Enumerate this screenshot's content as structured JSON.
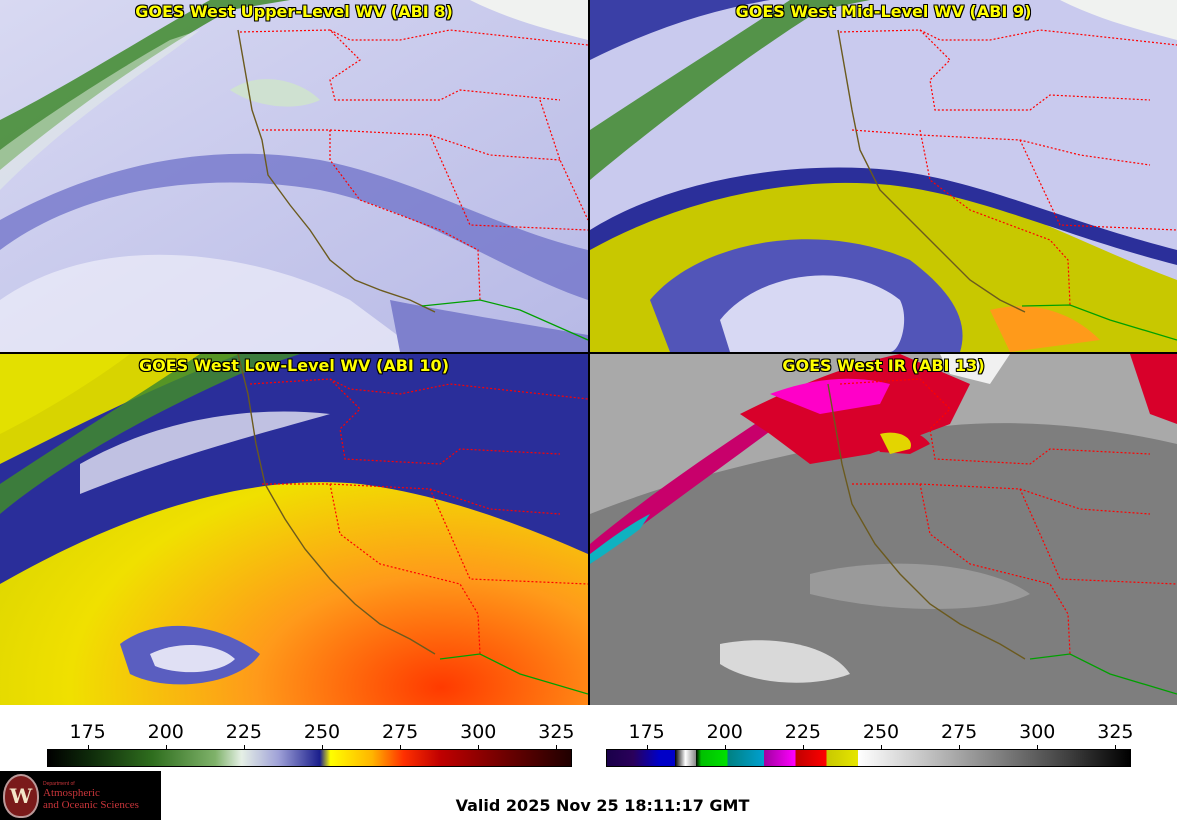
{
  "panels": [
    {
      "id": "upper",
      "title": "GOES West Upper-Level WV (ABI 8)"
    },
    {
      "id": "mid",
      "title": "GOES West Mid-Level WV (ABI 9)"
    },
    {
      "id": "low",
      "title": "GOES West Low-Level WV (ABI 10)"
    },
    {
      "id": "ir",
      "title": "GOES West IR (ABI 13)"
    }
  ],
  "colorbars": {
    "wv": {
      "ticks": [
        "175",
        "200",
        "225",
        "250",
        "275",
        "300",
        "325"
      ],
      "range": [
        162,
        330
      ]
    },
    "ir": {
      "ticks": [
        "175",
        "200",
        "225",
        "250",
        "275",
        "300",
        "325"
      ],
      "range": [
        162,
        330
      ]
    }
  },
  "logo": {
    "dept": "Department of",
    "line1": "Atmospheric",
    "line2": "and Oceanic Sciences",
    "seal": "W"
  },
  "valid_time": "Valid 2025 Nov 25 18:11:17 GMT",
  "colors": {
    "title": "#ffff00",
    "state_borders": "#ff0000",
    "coastline": "#6b5a1e",
    "mexico_border": "#00a000"
  }
}
